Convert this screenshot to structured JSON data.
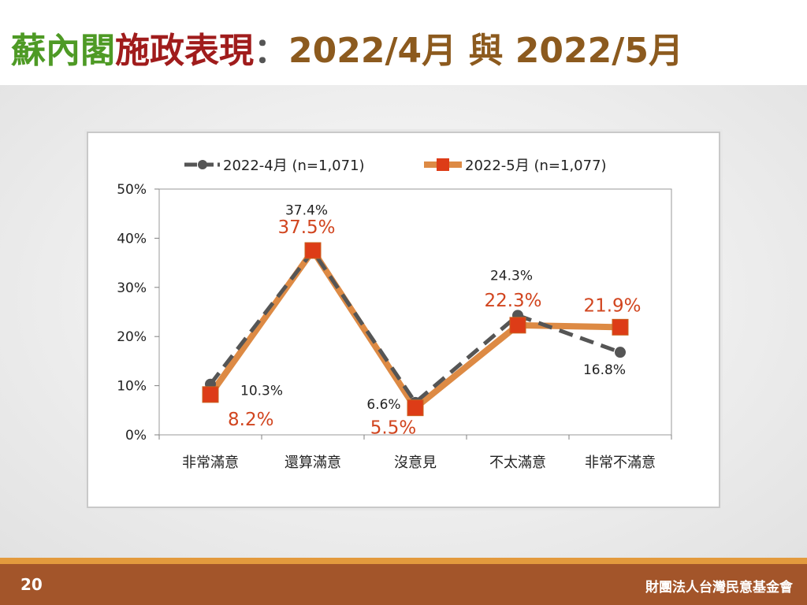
{
  "title": {
    "part1": "蘇內閣",
    "part2": "施政表現",
    "part3": "：",
    "part4": "2022/4月",
    "part5": " 與 ",
    "part6": "2022/5月"
  },
  "footer": {
    "page_number": "20",
    "organization": "財團法人台灣民意基金會"
  },
  "chart_data": {
    "type": "line",
    "categories": [
      "非常滿意",
      "還算滿意",
      "沒意見",
      "不太滿意",
      "非常不滿意"
    ],
    "series": [
      {
        "name": "2022-4月  (n=1,071)",
        "values": [
          10.3,
          37.4,
          6.6,
          24.3,
          16.8
        ],
        "labels": [
          "10.3%",
          "37.4%",
          "6.6%",
          "24.3%",
          "16.8%"
        ],
        "color": "#555555",
        "style": "dashed",
        "marker": "circle"
      },
      {
        "name": "2022-5月  (n=1,077)",
        "values": [
          8.2,
          37.5,
          5.5,
          22.3,
          21.9
        ],
        "labels": [
          "8.2%",
          "37.5%",
          "5.5%",
          "22.3%",
          "21.9%"
        ],
        "color": "#dd8a44",
        "label_color": "#d1451f",
        "marker_color": "#dd3c17",
        "style": "solid",
        "marker": "square"
      }
    ],
    "ylim": [
      0,
      50
    ],
    "yticks": [
      "0%",
      "10%",
      "20%",
      "30%",
      "40%",
      "50%"
    ],
    "grid": false,
    "legend": "top"
  }
}
